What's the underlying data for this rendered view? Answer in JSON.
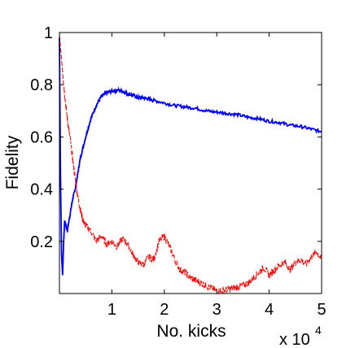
{
  "chart_data": {
    "type": "line",
    "title": "",
    "xlabel": "No. kicks",
    "ylabel": "Fidelity",
    "x_multiplier_label": "x 10",
    "x_multiplier_exponent": "4",
    "xlim": [
      0,
      5
    ],
    "ylim": [
      0,
      1
    ],
    "xticks": [
      1,
      2,
      3,
      4,
      5
    ],
    "xtick_labels": [
      "1",
      "2",
      "3",
      "4",
      "5"
    ],
    "yticks": [
      0.2,
      0.4,
      0.6,
      0.8,
      1
    ],
    "ytick_labels": [
      "0.2",
      "0.4",
      "0.6",
      "0.8",
      "1"
    ],
    "grid": false,
    "legend": "none",
    "series": [
      {
        "color": "#0000ff",
        "style": "solid",
        "x": [
          0,
          0.02,
          0.04,
          0.06,
          0.08,
          0.1,
          0.15,
          0.2,
          0.25,
          0.3,
          0.35,
          0.4,
          0.5,
          0.6,
          0.7,
          0.8,
          0.9,
          1.0,
          1.1,
          1.2,
          1.3,
          1.4,
          1.5,
          1.6,
          1.7,
          1.8,
          2.0,
          2.2,
          2.4,
          2.6,
          2.8,
          3.0,
          3.2,
          3.4,
          3.6,
          3.8,
          4.0,
          4.2,
          4.4,
          4.6,
          4.8,
          5.0
        ],
        "y": [
          0.98,
          0.45,
          0.15,
          0.07,
          0.2,
          0.28,
          0.24,
          0.3,
          0.36,
          0.4,
          0.46,
          0.52,
          0.6,
          0.67,
          0.72,
          0.755,
          0.77,
          0.775,
          0.78,
          0.775,
          0.765,
          0.76,
          0.75,
          0.75,
          0.745,
          0.74,
          0.73,
          0.72,
          0.715,
          0.71,
          0.7,
          0.695,
          0.69,
          0.685,
          0.675,
          0.67,
          0.66,
          0.655,
          0.645,
          0.64,
          0.63,
          0.62
        ]
      },
      {
        "color": "#ff0000",
        "style": "dashed",
        "x": [
          0,
          0.03,
          0.06,
          0.1,
          0.15,
          0.2,
          0.25,
          0.3,
          0.35,
          0.4,
          0.45,
          0.5,
          0.6,
          0.7,
          0.8,
          0.9,
          1.0,
          1.1,
          1.2,
          1.3,
          1.4,
          1.5,
          1.6,
          1.7,
          1.8,
          1.9,
          2.0,
          2.1,
          2.2,
          2.3,
          2.4,
          2.5,
          2.6,
          2.7,
          2.8,
          2.9,
          3.0,
          3.1,
          3.2,
          3.3,
          3.4,
          3.5,
          3.6,
          3.7,
          3.8,
          3.9,
          4.0,
          4.1,
          4.2,
          4.3,
          4.4,
          4.5,
          4.6,
          4.7,
          4.8,
          4.9,
          5.0
        ],
        "y": [
          0.99,
          0.92,
          0.85,
          0.76,
          0.67,
          0.6,
          0.52,
          0.44,
          0.37,
          0.32,
          0.28,
          0.26,
          0.24,
          0.2,
          0.22,
          0.19,
          0.2,
          0.18,
          0.21,
          0.19,
          0.15,
          0.12,
          0.11,
          0.14,
          0.13,
          0.2,
          0.22,
          0.18,
          0.13,
          0.09,
          0.08,
          0.06,
          0.05,
          0.04,
          0.03,
          0.02,
          0.01,
          0.01,
          0.015,
          0.02,
          0.025,
          0.03,
          0.04,
          0.06,
          0.08,
          0.1,
          0.07,
          0.09,
          0.11,
          0.12,
          0.09,
          0.12,
          0.13,
          0.11,
          0.14,
          0.16,
          0.13
        ]
      }
    ]
  }
}
